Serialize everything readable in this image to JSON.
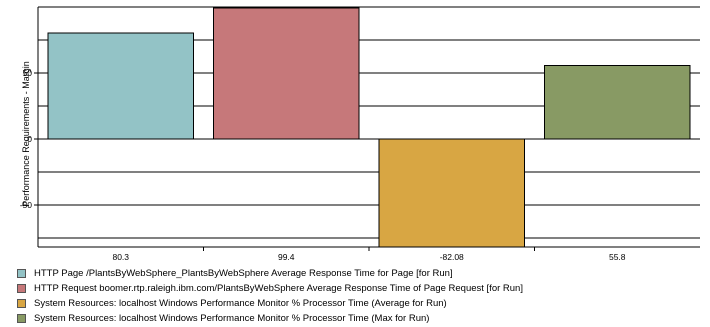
{
  "chart_data": {
    "type": "bar",
    "ylabel": "Performance Requirements - Margin",
    "ylim": [
      -82,
      100
    ],
    "yticks": [
      -50,
      0,
      50
    ],
    "grid": true,
    "legend_position": "bottom",
    "categories": [
      "80.3",
      "99.4",
      "-82.08",
      "55.8"
    ],
    "values": [
      80.3,
      99.4,
      -82.08,
      55.8
    ],
    "series": [
      {
        "name": "HTTP Page /PlantsByWebSphere_PlantsByWebSphere Average Response Time for Page [for Run]",
        "value": 80.3,
        "color": "#93c3c6"
      },
      {
        "name": "HTTP Request boomer.rtp.raleigh.ibm.com/PlantsByWebSphere Average Response Time of Page Request [for Run]",
        "value": 99.4,
        "color": "#c6787a"
      },
      {
        "name": "System Resources: localhost Windows Performance Monitor % Processor Time (Average for Run)",
        "value": -82.08,
        "color": "#d8a643"
      },
      {
        "name": "System Resources: localhost Windows Performance Monitor % Processor Time (Max for Run)",
        "value": 55.8,
        "color": "#889a64"
      }
    ]
  }
}
